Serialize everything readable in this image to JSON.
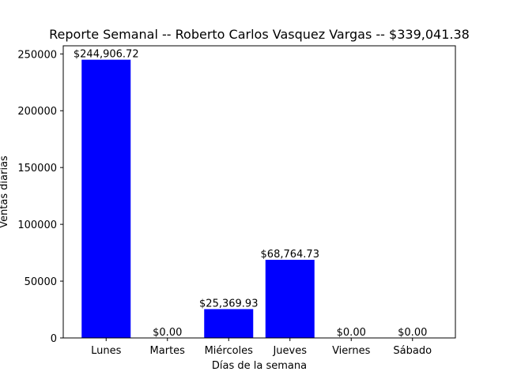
{
  "chart_data": {
    "type": "bar",
    "title": "Reporte Semanal -- Roberto Carlos Vasquez Vargas  -- $339,041.38",
    "xlabel": "Días de la semana",
    "ylabel": "Ventas diarias",
    "categories": [
      "Lunes",
      "Martes",
      "Miércoles",
      "Jueves",
      "Viernes",
      "Sábado"
    ],
    "values": [
      244906.72,
      0,
      25369.93,
      68764.73,
      0,
      0
    ],
    "data_labels": [
      "$244,906.72",
      "$0.00",
      "$25,369.93",
      "$68,764.73",
      "$0.00",
      "$0.00"
    ],
    "ylim": [
      0,
      257152
    ],
    "yticks": [
      0,
      50000,
      100000,
      150000,
      200000,
      250000
    ],
    "ytick_labels": [
      "0",
      "50000",
      "100000",
      "150000",
      "200000",
      "250000"
    ],
    "bar_color": "#0000ff",
    "grid": false,
    "legend": false
  }
}
